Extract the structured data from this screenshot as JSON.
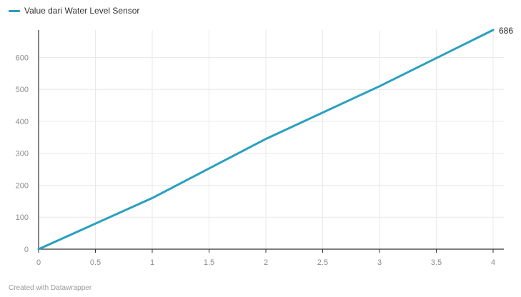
{
  "legend": {
    "label": "Value dari Water Level Sensor"
  },
  "credit": "Created with Datawrapper",
  "colors": {
    "series": "#2aa0bf",
    "grid": "#e9e9e9",
    "axis": "#333333"
  },
  "chart_data": {
    "type": "line",
    "title": "",
    "xlabel": "",
    "ylabel": "",
    "xlim": [
      0,
      4
    ],
    "ylim": [
      0,
      686
    ],
    "grid": true,
    "legend_position": "top-left",
    "x_ticks": [
      "0",
      "0.5",
      "1",
      "1.5",
      "2",
      "2.5",
      "3",
      "3.5",
      "4"
    ],
    "y_ticks": [
      "0",
      "100",
      "200",
      "300",
      "400",
      "500",
      "600"
    ],
    "series": [
      {
        "name": "Value dari Water Level Sensor",
        "x": [
          0,
          1,
          2,
          3,
          4
        ],
        "values": [
          0,
          160,
          345,
          510,
          686
        ],
        "end_label": "686"
      }
    ]
  }
}
